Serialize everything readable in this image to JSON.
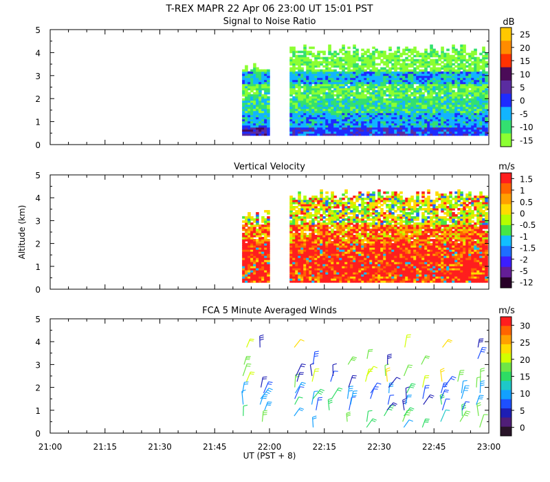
{
  "figure": {
    "title": "T-REX  MAPR 22 Apr 06  23:00 UT  15:01  PST",
    "xlabel": "UT  (PST + 8)",
    "ylabel": "Altitude (km)",
    "x_ticks": [
      "21:00",
      "21:15",
      "21:30",
      "21:45",
      "22:00",
      "22:15",
      "22:30",
      "22:45",
      "23:00"
    ],
    "y_ticks": [
      "0",
      "1",
      "2",
      "3",
      "4",
      "5"
    ]
  },
  "chart_data": [
    {
      "type": "heatmap",
      "title": "Signal to Noise Ratio",
      "unit": "dB",
      "xlabel": "UT (PST + 8)",
      "ylabel": "Altitude (km)",
      "xlim_minutes_after_21UT": [
        0,
        120
      ],
      "ylim_km": [
        0,
        5
      ],
      "colorbar": {
        "labels": [
          "25",
          "20",
          "15",
          "10",
          "5",
          "0",
          "-5",
          "-10",
          "-15"
        ],
        "colors": [
          "#ffc800",
          "#ff8c00",
          "#ff3200",
          "#4b0b58",
          "#5a2ca0",
          "#1e2bff",
          "#12b4ff",
          "#33e070",
          "#8cff32"
        ]
      },
      "data_segments": [
        {
          "start_min": 52.5,
          "end_min": 59.5,
          "top_km": 3.3
        },
        {
          "start_min": 65.5,
          "end_min": 119.5,
          "top_km": 4.1
        }
      ],
      "data_floor_km": 0.4
    },
    {
      "type": "heatmap",
      "title": "Vertical Velocity",
      "unit": "m/s",
      "xlabel": "UT (PST + 8)",
      "ylabel": "Altitude (km)",
      "xlim_minutes_after_21UT": [
        0,
        120
      ],
      "ylim_km": [
        0,
        5
      ],
      "colorbar": {
        "labels": [
          "1.5",
          "1",
          "0.5",
          "0",
          "-0.5",
          "-1",
          "-1.5",
          "-2",
          "-5",
          "-12"
        ],
        "colors": [
          "#ff1e1e",
          "#ff6400",
          "#ffa000",
          "#ffdc00",
          "#b4ff00",
          "#46e646",
          "#12beff",
          "#1e6eff",
          "#3c1eff",
          "#641e96",
          "#280028"
        ]
      },
      "data_segments": [
        {
          "start_min": 52.5,
          "end_min": 59.5,
          "top_km": 3.2
        },
        {
          "start_min": 65.5,
          "end_min": 119.5,
          "top_km": 4.1
        }
      ],
      "data_floor_km": 0.3
    },
    {
      "type": "scatter",
      "title": "FCA 5 Minute Averaged Winds",
      "unit": "m/s",
      "xlabel": "UT (PST + 8)",
      "ylabel": "Altitude (km)",
      "xlim_minutes_after_21UT": [
        0,
        120
      ],
      "ylim_km": [
        0,
        5
      ],
      "colorbar": {
        "labels": [
          "30",
          "25",
          "20",
          "15",
          "10",
          "5",
          "0"
        ],
        "colors": [
          "#ff1e1e",
          "#ff6400",
          "#ffa000",
          "#ffdc00",
          "#d2ff00",
          "#6ee646",
          "#2ddc64",
          "#1ec8c8",
          "#12a0ff",
          "#1e50ff",
          "#1e1eb4",
          "#501e78",
          "#281428"
        ]
      },
      "barb_columns_minutes": [
        53,
        58,
        67,
        72,
        77,
        82,
        87,
        92,
        97,
        102,
        107,
        112,
        117
      ],
      "barb_altitudes_km": [
        0.25,
        0.5,
        0.75,
        1.0,
        1.25,
        1.5,
        1.75,
        2.0,
        2.25,
        2.5,
        3.0,
        3.25,
        3.5,
        3.75
      ]
    }
  ]
}
